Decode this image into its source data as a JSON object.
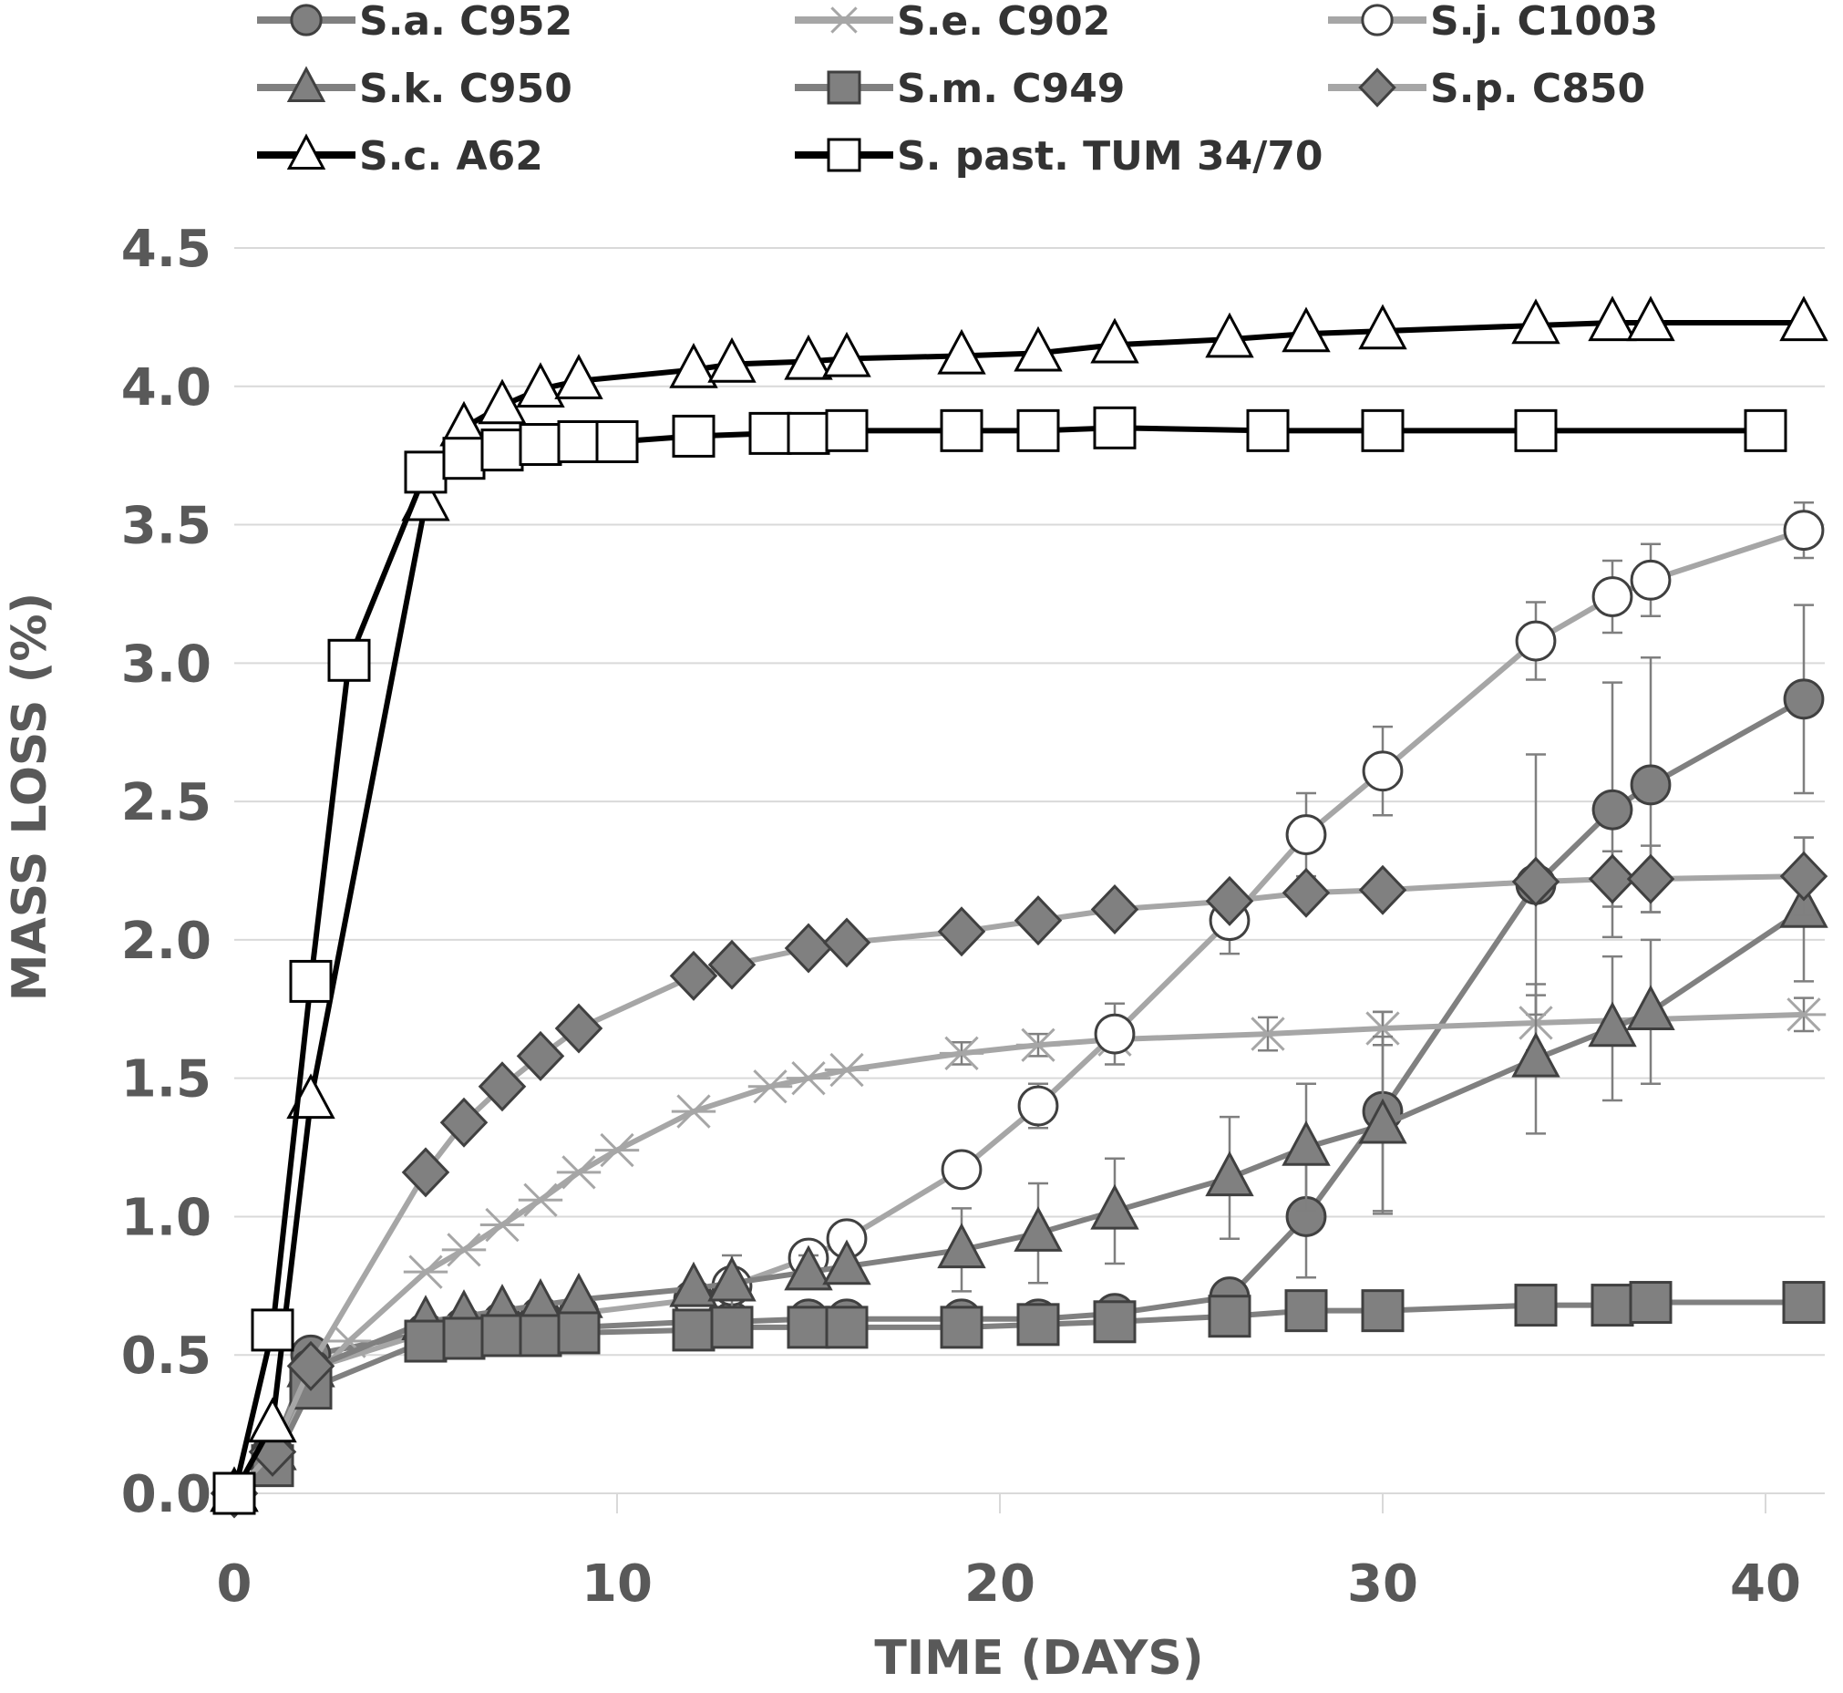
{
  "chart_data": {
    "type": "line",
    "title": "",
    "xlabel": "TIME (DAYS)",
    "ylabel": "MASS LOSS (%)",
    "xlim": [
      0,
      41.5
    ],
    "ylim": [
      0,
      4.5
    ],
    "x_ticks": [
      "0",
      "10",
      "20",
      "30",
      "40"
    ],
    "x_tick_values": [
      0,
      10,
      20,
      30,
      40
    ],
    "y_ticks": [
      "0.0",
      "0.5",
      "1.0",
      "1.5",
      "2.0",
      "2.5",
      "3.0",
      "3.5",
      "4.0",
      "4.5"
    ],
    "y_tick_values": [
      0,
      0.5,
      1.0,
      1.5,
      2.0,
      2.5,
      3.0,
      3.5,
      4.0,
      4.5
    ],
    "grid": "horizontal",
    "legend_position": "top",
    "series": [
      {
        "name": "S.a. C952",
        "color": "#808080",
        "marker": "circle",
        "marker_fill": "#808080",
        "x": [
          0,
          1,
          2,
          5,
          6,
          7,
          8,
          9,
          12,
          13,
          15,
          16,
          19,
          21,
          23,
          26,
          28,
          30,
          34,
          36,
          37,
          41
        ],
        "y": [
          0,
          0.15,
          0.5,
          0.58,
          0.6,
          0.6,
          0.6,
          0.6,
          0.62,
          0.62,
          0.63,
          0.63,
          0.63,
          0.63,
          0.65,
          0.71,
          1.0,
          1.38,
          2.2,
          2.47,
          2.56,
          2.87
        ],
        "err": [
          0,
          0,
          0,
          0,
          0,
          0,
          0,
          0,
          0,
          0,
          0,
          0,
          0,
          0,
          0,
          0,
          0.22,
          0.36,
          0.47,
          0.46,
          0.46,
          0.34
        ]
      },
      {
        "name": "S.e. C902",
        "color": "#a6a6a6",
        "marker": "x",
        "marker_fill": "none",
        "x": [
          0,
          1,
          2,
          3,
          5,
          6,
          7,
          8,
          9,
          10,
          12,
          14,
          15,
          16,
          19,
          21,
          23,
          27,
          30,
          34,
          41
        ],
        "y": [
          0,
          0.15,
          0.4,
          0.55,
          0.8,
          0.88,
          0.97,
          1.06,
          1.16,
          1.24,
          1.38,
          1.47,
          1.5,
          1.53,
          1.59,
          1.62,
          1.64,
          1.66,
          1.68,
          1.7,
          1.73
        ],
        "err": [
          0,
          0,
          0,
          0,
          0,
          0,
          0,
          0,
          0,
          0,
          0,
          0,
          0,
          0,
          0.04,
          0.04,
          0.04,
          0.06,
          0.06,
          0.1,
          0.06
        ]
      },
      {
        "name": "S.j. C1003",
        "color": "#a6a6a6",
        "marker": "circle",
        "marker_fill": "#ffffff",
        "x": [
          0,
          1,
          2,
          5,
          6,
          7,
          8,
          9,
          12,
          13,
          15,
          16,
          19,
          21,
          23,
          26,
          28,
          30,
          34,
          36,
          37,
          41
        ],
        "y": [
          0,
          0.15,
          0.45,
          0.58,
          0.6,
          0.62,
          0.64,
          0.65,
          0.7,
          0.75,
          0.85,
          0.92,
          1.17,
          1.4,
          1.66,
          2.07,
          2.38,
          2.61,
          3.08,
          3.24,
          3.3,
          3.48
        ],
        "err": [
          0,
          0,
          0,
          0,
          0,
          0,
          0,
          0,
          0,
          0.06,
          0.04,
          0.04,
          0.03,
          0.08,
          0.11,
          0.12,
          0.15,
          0.16,
          0.14,
          0.13,
          0.13,
          0.1
        ]
      },
      {
        "name": "S.k. C950",
        "color": "#808080",
        "marker": "triangle",
        "marker_fill": "#808080",
        "x": [
          0,
          1,
          2,
          5,
          6,
          7,
          8,
          9,
          12,
          13,
          15,
          16,
          19,
          21,
          23,
          26,
          28,
          30,
          34,
          36,
          37,
          41
        ],
        "y": [
          0,
          0.15,
          0.45,
          0.62,
          0.64,
          0.66,
          0.68,
          0.7,
          0.74,
          0.76,
          0.8,
          0.82,
          0.88,
          0.94,
          1.02,
          1.14,
          1.25,
          1.33,
          1.57,
          1.68,
          1.74,
          2.11
        ],
        "err": [
          0,
          0,
          0,
          0,
          0,
          0,
          0,
          0,
          0,
          0.1,
          0.06,
          0,
          0.15,
          0.18,
          0.19,
          0.22,
          0.23,
          0.32,
          0.27,
          0.26,
          0.26,
          0.26
        ]
      },
      {
        "name": "S.m. C949",
        "color": "#808080",
        "marker": "square",
        "marker_fill": "#808080",
        "x": [
          0,
          1,
          2,
          5,
          6,
          7,
          8,
          9,
          12,
          13,
          15,
          16,
          19,
          21,
          23,
          26,
          28,
          30,
          34,
          36,
          37,
          41
        ],
        "y": [
          0,
          0.1,
          0.38,
          0.55,
          0.56,
          0.57,
          0.57,
          0.58,
          0.59,
          0.6,
          0.6,
          0.6,
          0.6,
          0.61,
          0.62,
          0.64,
          0.66,
          0.66,
          0.68,
          0.68,
          0.69,
          0.69
        ],
        "err": [
          0,
          0,
          0,
          0,
          0,
          0,
          0,
          0,
          0,
          0,
          0,
          0,
          0,
          0,
          0,
          0,
          0,
          0,
          0,
          0,
          0,
          0
        ]
      },
      {
        "name": "S.p. C850",
        "color": "#a6a6a6",
        "marker": "diamond",
        "marker_fill": "#808080",
        "x": [
          0,
          1,
          2,
          5,
          6,
          7,
          8,
          9,
          12,
          13,
          15,
          16,
          19,
          21,
          23,
          26,
          28,
          30,
          34,
          36,
          37,
          41
        ],
        "y": [
          0,
          0.15,
          0.46,
          1.16,
          1.34,
          1.47,
          1.58,
          1.68,
          1.87,
          1.91,
          1.97,
          1.99,
          2.03,
          2.07,
          2.11,
          2.14,
          2.17,
          2.18,
          2.21,
          2.22,
          2.22,
          2.23
        ],
        "err": [
          0,
          0,
          0,
          0,
          0,
          0,
          0,
          0,
          0,
          0,
          0,
          0,
          0,
          0,
          0,
          0,
          0,
          0,
          0,
          0.1,
          0.12,
          0.14
        ]
      },
      {
        "name": "S.c. A62",
        "color": "#000000",
        "marker": "triangle",
        "marker_fill": "#ffffff",
        "x": [
          0,
          1,
          2,
          5,
          6,
          7,
          8,
          9,
          12,
          13,
          15,
          16,
          19,
          21,
          23,
          26,
          28,
          30,
          34,
          36,
          37,
          41
        ],
        "y": [
          0,
          0.25,
          1.42,
          3.58,
          3.85,
          3.93,
          3.99,
          4.02,
          4.06,
          4.08,
          4.09,
          4.1,
          4.11,
          4.12,
          4.15,
          4.17,
          4.19,
          4.2,
          4.22,
          4.23,
          4.23,
          4.23
        ],
        "err": [
          0,
          0,
          0,
          0,
          0,
          0,
          0,
          0,
          0,
          0,
          0,
          0,
          0,
          0,
          0,
          0,
          0,
          0,
          0,
          0,
          0,
          0
        ]
      },
      {
        "name": "S. past. TUM 34/70",
        "color": "#000000",
        "marker": "square",
        "marker_fill": "#ffffff",
        "x": [
          0,
          1,
          2,
          3,
          5,
          6,
          7,
          8,
          9,
          10,
          12,
          14,
          15,
          16,
          19,
          21,
          23,
          27,
          30,
          34,
          40
        ],
        "y": [
          0,
          0.59,
          1.85,
          3.01,
          3.69,
          3.74,
          3.77,
          3.79,
          3.8,
          3.8,
          3.82,
          3.83,
          3.83,
          3.84,
          3.84,
          3.84,
          3.85,
          3.84,
          3.84,
          3.84,
          3.84
        ],
        "err": [
          0,
          0,
          0,
          0,
          0,
          0,
          0,
          0,
          0,
          0,
          0,
          0,
          0,
          0,
          0,
          0,
          0,
          0,
          0,
          0,
          0
        ]
      }
    ]
  }
}
